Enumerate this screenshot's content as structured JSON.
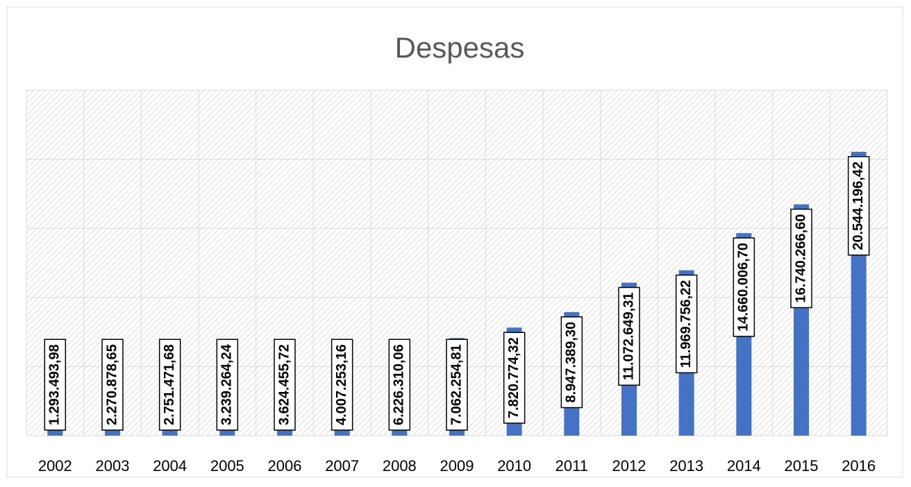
{
  "chart_data": {
    "type": "bar",
    "title": "Despesas",
    "categories": [
      "2002",
      "2003",
      "2004",
      "2005",
      "2006",
      "2007",
      "2008",
      "2009",
      "2010",
      "2011",
      "2012",
      "2013",
      "2014",
      "2015",
      "2016"
    ],
    "values": [
      1293493.98,
      2270878.65,
      2751471.68,
      3239264.24,
      3624455.72,
      4007253.16,
      6226310.06,
      7062254.81,
      7820774.32,
      8947389.3,
      11072649.31,
      11969756.22,
      14660006.7,
      16740266.6,
      20544196.42
    ],
    "value_labels": [
      "1.293.493,98",
      "2.270.878,65",
      "2.751.471,68",
      "3.239.264,24",
      "3.624.455,72",
      "4.007.253,16",
      "6.226.310,06",
      "7.062.254,81",
      "7.820.774,32",
      "8.947.389,30",
      "11.072.649,31",
      "11.969.756,22",
      "14.660.006,70",
      "16.740.266,60",
      "20.544.196,42"
    ],
    "color": "#4472c4",
    "ylim": [
      0,
      25000000
    ],
    "yticks": [
      0,
      5000000,
      10000000,
      15000000,
      20000000,
      25000000
    ],
    "grid": true
  }
}
